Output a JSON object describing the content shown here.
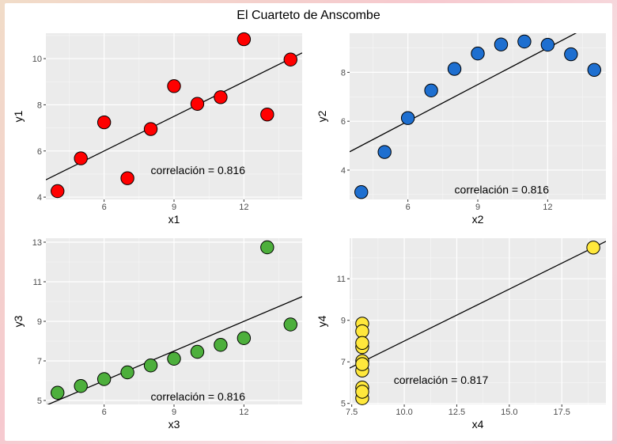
{
  "title": "El Cuarteto de Anscombe",
  "chart_data": [
    {
      "type": "scatter",
      "panel_id": "p1",
      "xlabel": "x1",
      "ylabel": "y1",
      "color": "#ff0000",
      "x": [
        10,
        8,
        13,
        9,
        11,
        14,
        6,
        4,
        12,
        7,
        5
      ],
      "y": [
        8.04,
        6.95,
        7.58,
        8.81,
        8.33,
        9.96,
        7.24,
        4.26,
        10.84,
        4.82,
        5.68
      ],
      "xlim": [
        3.5,
        14.5
      ],
      "ylim": [
        3.9,
        11.1
      ],
      "xticks": [
        6,
        9,
        12
      ],
      "yticks": [
        4,
        6,
        8,
        10
      ],
      "fit": {
        "intercept": 3.0,
        "slope": 0.5
      },
      "annotation": "correlación =  0.816",
      "annotation_pos": [
        8,
        5
      ]
    },
    {
      "type": "scatter",
      "panel_id": "p2",
      "xlabel": "x2",
      "ylabel": "y2",
      "color": "#1e6fd0",
      "x": [
        10,
        8,
        13,
        9,
        11,
        14,
        6,
        4,
        12,
        7,
        5
      ],
      "y": [
        9.14,
        8.14,
        8.74,
        8.77,
        9.26,
        8.1,
        6.13,
        3.1,
        9.13,
        7.26,
        4.74
      ],
      "xlim": [
        3.5,
        14.5
      ],
      "ylim": [
        2.8,
        9.6
      ],
      "xticks": [
        6,
        9,
        12
      ],
      "yticks": [
        4,
        6,
        8
      ],
      "fit": {
        "intercept": 3.0,
        "slope": 0.5
      },
      "annotation": "correlación =  0.816",
      "annotation_pos": [
        8,
        3.05
      ]
    },
    {
      "type": "scatter",
      "panel_id": "p3",
      "xlabel": "x3",
      "ylabel": "y3",
      "color": "#4daf3c",
      "x": [
        10,
        8,
        13,
        9,
        11,
        14,
        6,
        4,
        12,
        7,
        5
      ],
      "y": [
        7.46,
        6.77,
        12.74,
        7.11,
        7.81,
        8.84,
        6.08,
        5.39,
        8.15,
        6.42,
        5.73
      ],
      "xlim": [
        3.5,
        14.5
      ],
      "ylim": [
        4.8,
        13.2
      ],
      "xticks": [
        6,
        9,
        12
      ],
      "yticks": [
        5,
        7,
        9,
        11,
        13
      ],
      "fit": {
        "intercept": 3.0,
        "slope": 0.5
      },
      "annotation": "correlación =  0.816",
      "annotation_pos": [
        8,
        5.0
      ]
    },
    {
      "type": "scatter",
      "panel_id": "p4",
      "xlabel": "x4",
      "ylabel": "y4",
      "color": "#ffe83c",
      "x": [
        8,
        8,
        8,
        8,
        8,
        8,
        8,
        19,
        8,
        8,
        8
      ],
      "y": [
        6.58,
        5.76,
        7.71,
        8.84,
        8.47,
        7.04,
        5.25,
        12.5,
        5.56,
        7.91,
        6.89
      ],
      "xlim": [
        7.4,
        19.6
      ],
      "ylim": [
        4.95,
        12.95
      ],
      "xticks": [
        7.5,
        10.0,
        12.5,
        15.0,
        17.5
      ],
      "yticks": [
        5,
        7,
        9,
        11
      ],
      "fit": {
        "intercept": 3.0,
        "slope": 0.5
      },
      "annotation": "correlación =  0.817",
      "annotation_pos": [
        9.5,
        5.95
      ]
    }
  ]
}
